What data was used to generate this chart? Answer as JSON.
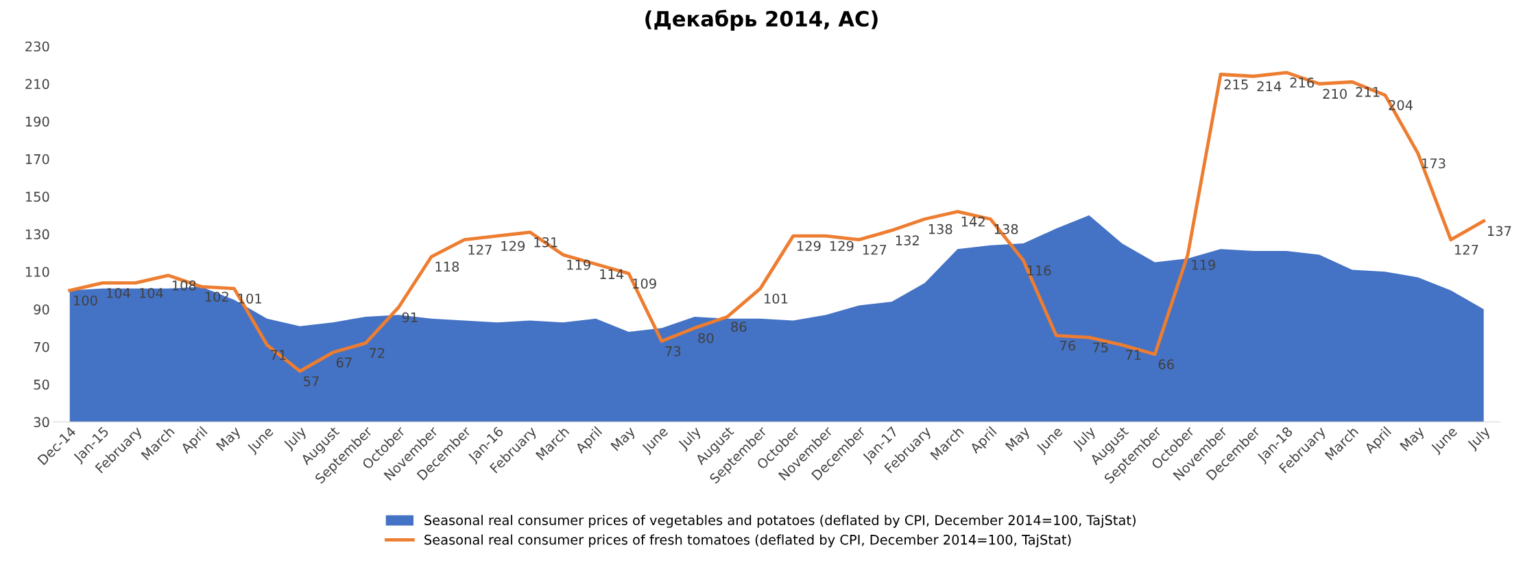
{
  "chart_data": {
    "type": "area",
    "title": "(Декабрь 2014, АС)",
    "categories": [
      "Dec-14",
      "Jan-15",
      "February",
      "March",
      "April",
      "May",
      "June",
      "July",
      "August",
      "September",
      "October",
      "November",
      "December",
      "Jan-16",
      "February",
      "March",
      "April",
      "May",
      "June",
      "July",
      "August",
      "September",
      "October",
      "November",
      "December",
      "Jan-17",
      "February",
      "March",
      "April",
      "May",
      "June",
      "July",
      "August",
      "September",
      "October",
      "November",
      "December",
      "Jan-18",
      "February",
      "March",
      "April",
      "May",
      "June",
      "July"
    ],
    "series": [
      {
        "name": "Seasonal real consumer prices of vegetables and potatoes (deflated by CPI, December 2014=100, TajStat)",
        "color": "#4472c4",
        "values": [
          100,
          101,
          101,
          101,
          102,
          95,
          85,
          81,
          83,
          86,
          87,
          85,
          84,
          83,
          84,
          83,
          85,
          78,
          80,
          86,
          85,
          85,
          84,
          87,
          92,
          94,
          104,
          122,
          124,
          125,
          133,
          140,
          125,
          115,
          117,
          122,
          121,
          121,
          119,
          111,
          110,
          107,
          100,
          90
        ]
      },
      {
        "name": "Seasonal real consumer prices of fresh tomatoes (deflated by CPI, December 2014=100, TajStat)",
        "type": "line",
        "color": "#ed7d31",
        "data_labels": true,
        "values": [
          100,
          104,
          104,
          108,
          102,
          101,
          71,
          57,
          67,
          72,
          91,
          118,
          127,
          129,
          131,
          119,
          114,
          109,
          73,
          80,
          86,
          101,
          129,
          129,
          127,
          132,
          138,
          142,
          138,
          116,
          76,
          75,
          71,
          66,
          119,
          215,
          214,
          216,
          210,
          211,
          204,
          173,
          127,
          137
        ]
      }
    ],
    "ylim": [
      30,
      230
    ],
    "yticks": [
      30,
      50,
      70,
      90,
      110,
      130,
      150,
      170,
      190,
      210,
      230
    ],
    "grid": false,
    "legend": "bottom",
    "marker": "none",
    "line_style": "solid"
  }
}
